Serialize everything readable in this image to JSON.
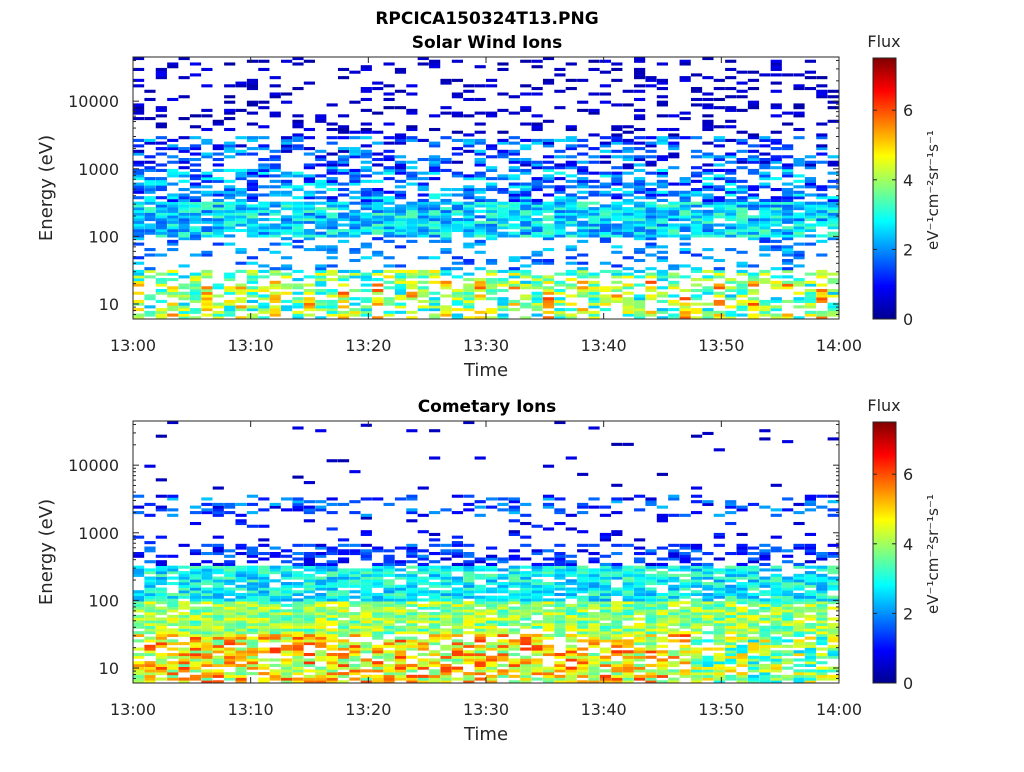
{
  "figure_title": "RPCICA150324T13.PNG",
  "chart_data": [
    {
      "type": "heatmap",
      "title": "Solar Wind Ions",
      "xlabel": "Time",
      "ylabel": "Energy (eV)",
      "x_ticks": [
        "13:00",
        "13:10",
        "13:20",
        "13:30",
        "13:40",
        "13:50",
        "14:00"
      ],
      "xlim": [
        "13:00",
        "14:00"
      ],
      "y_ticks": [
        "10",
        "100",
        "1000",
        "10000"
      ],
      "ylim": [
        6,
        45000
      ],
      "y_scale": "log",
      "colorbar": {
        "label": "Flux",
        "unit": "eV⁻¹cm⁻²sr⁻¹s⁻¹",
        "ticks": [
          "0",
          "2",
          "4",
          "6"
        ],
        "range": [
          0,
          7.5
        ],
        "colormap": "jet"
      },
      "scan_count": 62,
      "grid": false
    },
    {
      "type": "heatmap",
      "title": "Cometary Ions",
      "xlabel": "Time",
      "ylabel": "Energy (eV)",
      "x_ticks": [
        "13:00",
        "13:10",
        "13:20",
        "13:30",
        "13:40",
        "13:50",
        "14:00"
      ],
      "xlim": [
        "13:00",
        "14:00"
      ],
      "y_ticks": [
        "10",
        "100",
        "1000",
        "10000"
      ],
      "ylim": [
        6,
        45000
      ],
      "y_scale": "log",
      "colorbar": {
        "label": "Flux",
        "unit": "eV⁻¹cm⁻²sr⁻¹s⁻¹",
        "ticks": [
          "0",
          "2",
          "4",
          "6"
        ],
        "range": [
          0,
          7.5
        ],
        "colormap": "jet"
      },
      "scan_count": 62,
      "grid": false
    }
  ]
}
